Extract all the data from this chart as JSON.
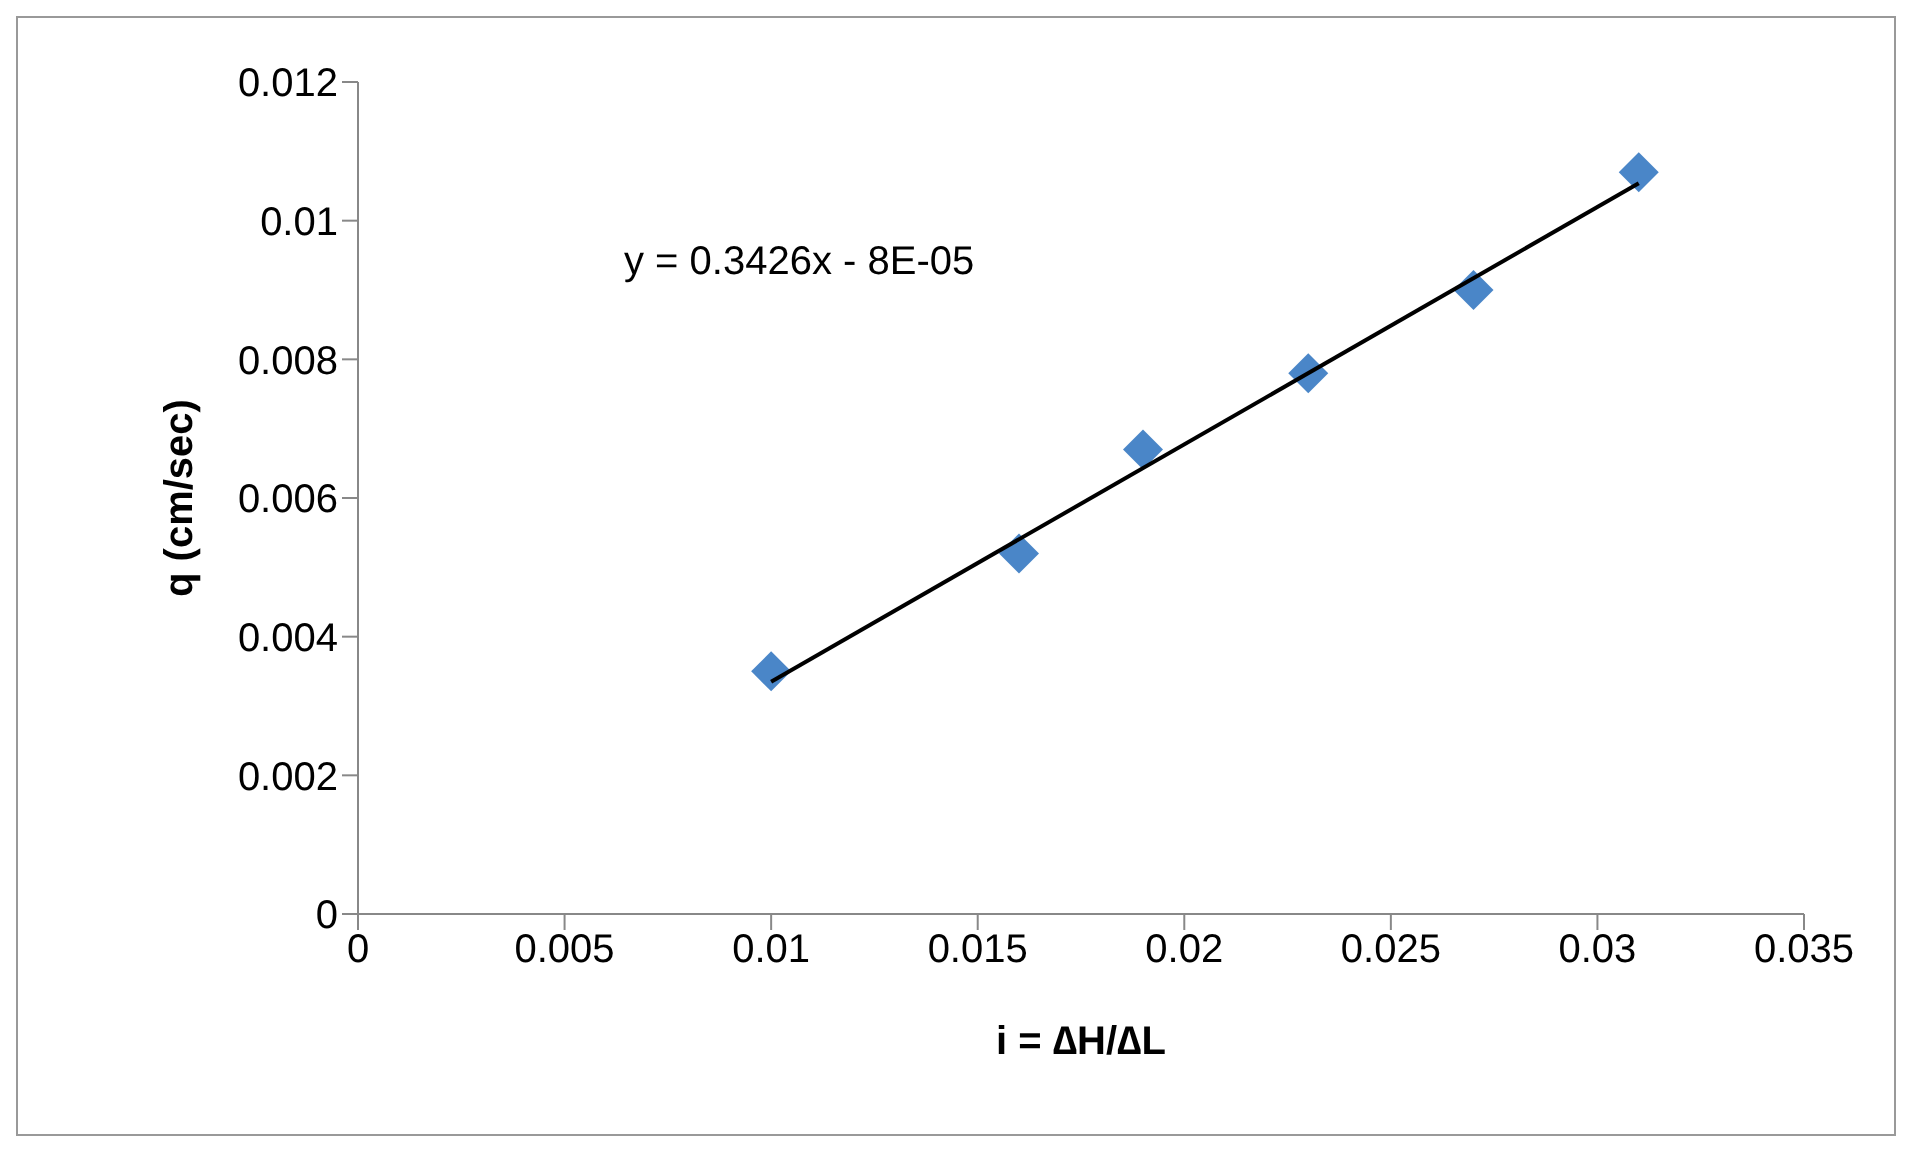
{
  "chart_data": {
    "type": "scatter",
    "xlabel": "i = ∆H/∆L",
    "ylabel": "q (cm/sec)",
    "grid": false,
    "legend": false,
    "xlim": [
      0,
      0.035
    ],
    "xticks": [
      0,
      0.005,
      0.01,
      0.015,
      0.02,
      0.025,
      0.03,
      0.035
    ],
    "ylim": [
      0,
      0.012
    ],
    "yticks": [
      0,
      0.002,
      0.004,
      0.006,
      0.008,
      0.01,
      0.012
    ],
    "annotations": [
      "y = 0.3426x - 8E-05"
    ],
    "series": [
      {
        "color": "#4a86c8",
        "marker": "diamond",
        "x": [
          0.01,
          0.016,
          0.019,
          0.023,
          0.027,
          0.031
        ],
        "values": [
          0.0035,
          0.0052,
          0.0067,
          0.0078,
          0.009,
          0.0107
        ]
      },
      {
        "type": "line",
        "marker": "none",
        "color": "#000000",
        "x": [
          0.01,
          0.031
        ],
        "values": [
          0.00335,
          0.01054
        ]
      }
    ]
  }
}
